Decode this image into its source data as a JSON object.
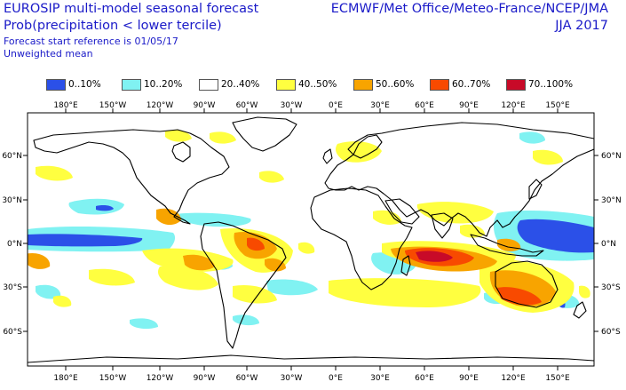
{
  "header": {
    "title_line1": "EUROSIP multi-model seasonal forecast",
    "title_line2": "Prob(precipitation < lower tercile)",
    "start_ref": "Forecast start reference is 01/05/17",
    "weighting": "Unweighted mean",
    "organizations": "ECMWF/Met Office/Meteo-France/NCEP/JMA",
    "season": "JJA 2017"
  },
  "legend": [
    {
      "label": "0..10%",
      "color": "#2b50e8"
    },
    {
      "label": "10..20%",
      "color": "#80f2f2"
    },
    {
      "label": "20..40%",
      "color": "#ffffff"
    },
    {
      "label": "40..50%",
      "color": "#ffff40"
    },
    {
      "label": "50..60%",
      "color": "#f8a400"
    },
    {
      "label": "60..70%",
      "color": "#f84a00"
    },
    {
      "label": "70..100%",
      "color": "#c80a28"
    }
  ],
  "map": {
    "lon_labels": [
      "180°E",
      "150°W",
      "120°W",
      "90°W",
      "60°W",
      "30°W",
      "0°E",
      "30°E",
      "60°E",
      "90°E",
      "120°E",
      "150°E"
    ],
    "lat_labels": [
      "60°N",
      "30°N",
      "0°N",
      "30°S",
      "60°S"
    ],
    "land_color": "#ffffff",
    "coast_color": "#000000"
  }
}
